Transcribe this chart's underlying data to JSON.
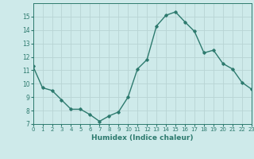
{
  "x": [
    0,
    1,
    2,
    3,
    4,
    5,
    6,
    7,
    8,
    9,
    10,
    11,
    12,
    13,
    14,
    15,
    16,
    17,
    18,
    19,
    20,
    21,
    22,
    23
  ],
  "y": [
    11.3,
    9.7,
    9.5,
    8.8,
    8.1,
    8.1,
    7.7,
    7.2,
    7.6,
    7.9,
    9.0,
    11.1,
    11.8,
    14.3,
    15.1,
    15.35,
    14.6,
    13.9,
    12.3,
    12.5,
    11.5,
    11.1,
    10.1,
    9.6
  ],
  "xlabel": "Humidex (Indice chaleur)",
  "ylim": [
    7,
    16
  ],
  "xlim": [
    0,
    23
  ],
  "yticks": [
    7,
    8,
    9,
    10,
    11,
    12,
    13,
    14,
    15
  ],
  "xtick_labels": [
    "0",
    "1",
    "2",
    "3",
    "4",
    "5",
    "6",
    "7",
    "8",
    "9",
    "10",
    "11",
    "12",
    "13",
    "14",
    "15",
    "16",
    "17",
    "18",
    "19",
    "20",
    "21",
    "22",
    "23"
  ],
  "line_color": "#2d7a6e",
  "bg_color": "#ceeaea",
  "grid_color": "#b8d4d4",
  "marker": "D",
  "marker_size": 1.8,
  "line_width": 1.0
}
